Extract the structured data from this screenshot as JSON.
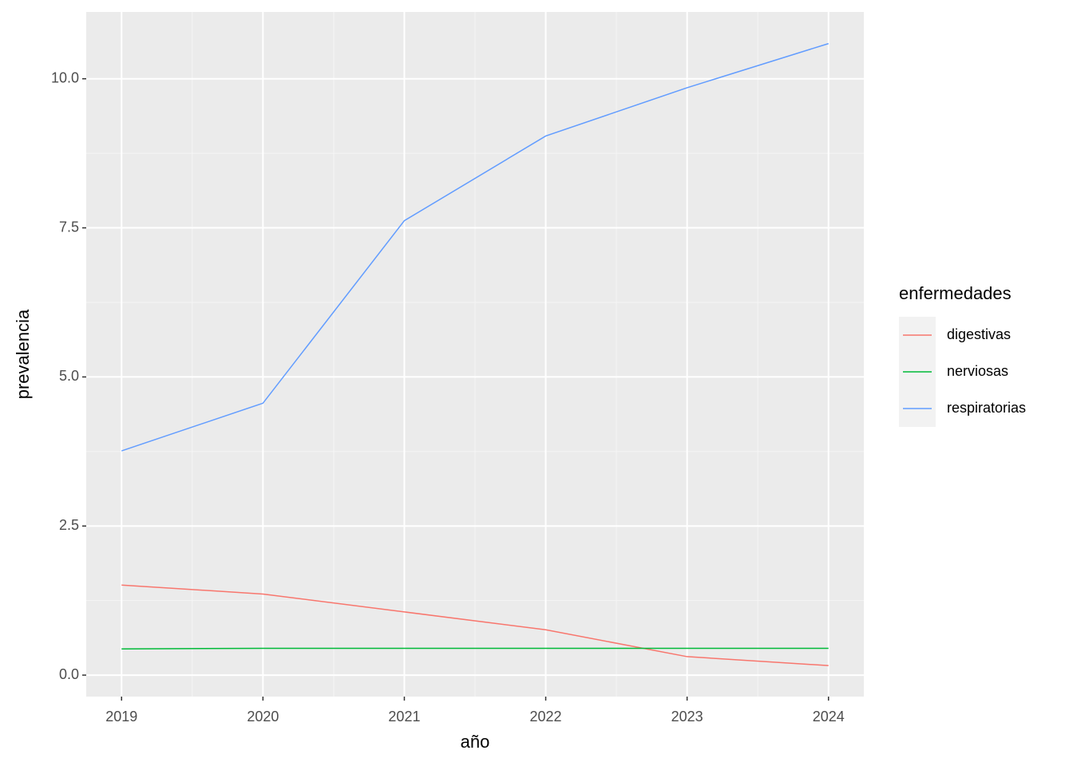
{
  "chart_data": {
    "type": "line",
    "x_label": "año",
    "y_label": "prevalencia",
    "x": [
      2019,
      2020,
      2021,
      2022,
      2023,
      2024
    ],
    "series": [
      {
        "name": "digestivas",
        "color": "#F8766D",
        "values": [
          1.51,
          1.36,
          1.06,
          0.76,
          0.31,
          0.16
        ]
      },
      {
        "name": "nerviosas",
        "color": "#00BA38",
        "values": [
          0.44,
          0.45,
          0.45,
          0.45,
          0.45,
          0.45
        ]
      },
      {
        "name": "respiratorias",
        "color": "#619CFF",
        "values": [
          3.76,
          4.56,
          7.62,
          9.04,
          9.85,
          10.59
        ]
      }
    ],
    "xlim": [
      2018.75,
      2024.25
    ],
    "ylim": [
      -0.36,
      11.12
    ],
    "xticks": [
      2019,
      2020,
      2021,
      2022,
      2023,
      2024
    ],
    "yticks": [
      {
        "value": 0,
        "label": "0.0"
      },
      {
        "value": 2.5,
        "label": "2.5"
      },
      {
        "value": 5,
        "label": "5.0"
      },
      {
        "value": 7.5,
        "label": "7.5"
      },
      {
        "value": 10,
        "label": "10.0"
      }
    ],
    "grid": true,
    "legend_title": "enfermedades",
    "legend_position": "right"
  }
}
